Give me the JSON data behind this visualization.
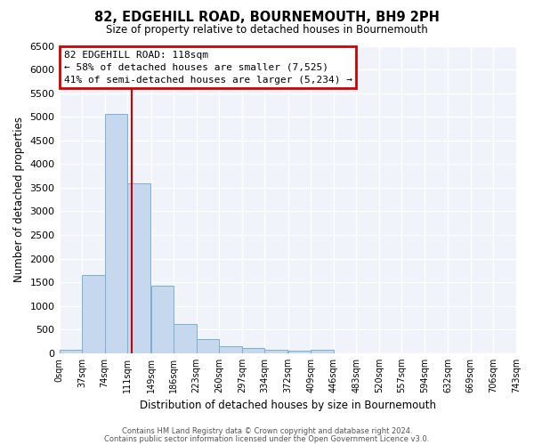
{
  "title": "82, EDGEHILL ROAD, BOURNEMOUTH, BH9 2PH",
  "subtitle": "Size of property relative to detached houses in Bournemouth",
  "xlabel": "Distribution of detached houses by size in Bournemouth",
  "ylabel": "Number of detached properties",
  "footer_line1": "Contains HM Land Registry data © Crown copyright and database right 2024.",
  "footer_line2": "Contains public sector information licensed under the Open Government Licence v3.0.",
  "bar_color": "#c5d8ed",
  "bar_edge_color": "#7aafd4",
  "grid_color": "#d0d8e8",
  "annotation_line1": "82 EDGEHILL ROAD: 118sqm",
  "annotation_line2": "← 58% of detached houses are smaller (7,525)",
  "annotation_line3": "41% of semi-detached houses are larger (5,234) →",
  "annotation_box_color": "#cc0000",
  "annotation_box_bg": "#ffffff",
  "property_size_sqm": 118,
  "bin_edges": [
    0,
    37,
    74,
    111,
    149,
    186,
    223,
    260,
    297,
    334,
    372,
    409,
    446,
    483,
    520,
    557,
    594,
    632,
    669,
    706,
    743
  ],
  "bin_labels": [
    "0sqm",
    "37sqm",
    "74sqm",
    "111sqm",
    "149sqm",
    "186sqm",
    "223sqm",
    "260sqm",
    "297sqm",
    "334sqm",
    "372sqm",
    "409sqm",
    "446sqm",
    "483sqm",
    "520sqm",
    "557sqm",
    "594sqm",
    "632sqm",
    "669sqm",
    "706sqm",
    "743sqm"
  ],
  "bar_heights": [
    75,
    1650,
    5060,
    3600,
    1420,
    620,
    300,
    150,
    110,
    75,
    60,
    75,
    0,
    0,
    0,
    0,
    0,
    0,
    0,
    0
  ],
  "ylim": [
    0,
    6500
  ],
  "yticks": [
    0,
    500,
    1000,
    1500,
    2000,
    2500,
    3000,
    3500,
    4000,
    4500,
    5000,
    5500,
    6000,
    6500
  ],
  "red_line_x": 118,
  "figsize": [
    6.0,
    5.0
  ],
  "dpi": 100,
  "bg_color": "#f0f4fa"
}
